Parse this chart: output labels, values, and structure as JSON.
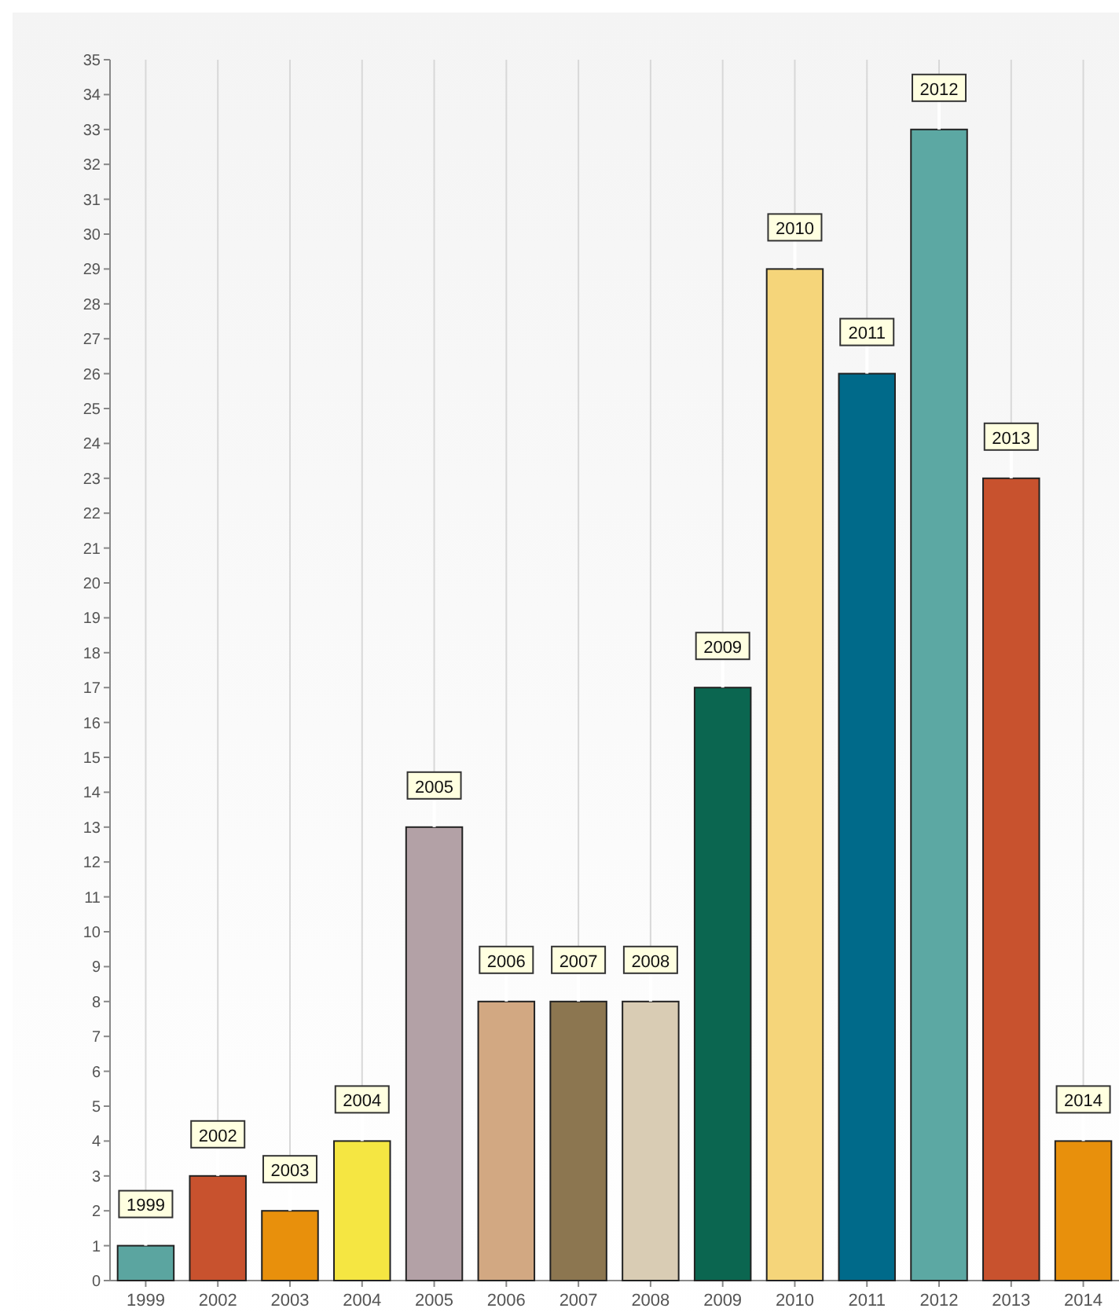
{
  "chart_data": {
    "type": "bar",
    "categories": [
      "1999",
      "2002",
      "2003",
      "2004",
      "2005",
      "2006",
      "2007",
      "2008",
      "2009",
      "2010",
      "2011",
      "2012",
      "2013",
      "2014"
    ],
    "values": [
      1,
      3,
      2,
      4,
      13,
      8,
      8,
      8,
      17,
      29,
      26,
      33,
      23,
      4
    ],
    "colors": [
      "#5ba5a0",
      "#c8522e",
      "#e8900c",
      "#f5e642",
      "#b3a1a6",
      "#d2a882",
      "#8c7650",
      "#d9ccb4",
      "#0b6650",
      "#f5d57a",
      "#006a8a",
      "#5ca8a3",
      "#c8522e",
      "#e8900c"
    ],
    "ylim": [
      0,
      35
    ],
    "yticks": [
      0,
      1,
      2,
      3,
      4,
      5,
      6,
      7,
      8,
      9,
      10,
      11,
      12,
      13,
      14,
      15,
      16,
      17,
      18,
      19,
      20,
      21,
      22,
      23,
      24,
      25,
      26,
      27,
      28,
      29,
      30,
      31,
      32,
      33,
      34,
      35
    ],
    "grid": "x",
    "annotations": [
      {
        "text": "1999",
        "x": "1999",
        "y": 1
      },
      {
        "text": "2002",
        "x": "2002",
        "y": 3
      },
      {
        "text": "2003",
        "x": "2003",
        "y": 2
      },
      {
        "text": "2004",
        "x": "2004",
        "y": 4
      },
      {
        "text": "2005",
        "x": "2005",
        "y": 13
      },
      {
        "text": "2006",
        "x": "2006",
        "y": 8
      },
      {
        "text": "2007",
        "x": "2007",
        "y": 8
      },
      {
        "text": "2008",
        "x": "2008",
        "y": 8
      },
      {
        "text": "2009",
        "x": "2009",
        "y": 17
      },
      {
        "text": "2010",
        "x": "2010",
        "y": 29
      },
      {
        "text": "2011",
        "x": "2011",
        "y": 26
      },
      {
        "text": "2012",
        "x": "2012",
        "y": 33
      },
      {
        "text": "2013",
        "x": "2013",
        "y": 23
      },
      {
        "text": "2014",
        "x": "2014",
        "y": 4
      }
    ]
  }
}
